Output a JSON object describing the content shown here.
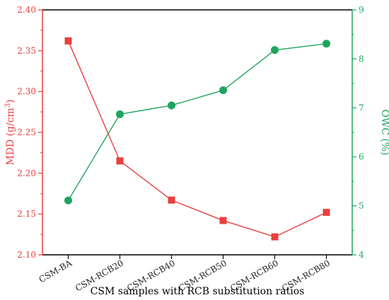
{
  "chart_data": {
    "type": "line",
    "categories": [
      "CSM-BA",
      "CSM-RCB20",
      "CSM-RCB40",
      "CSM-RCB50",
      "CSM-RCB60",
      "CSM-RCB80"
    ],
    "xlabel": "CSM samples with RCB substitution ratios",
    "ylabel_left": "MDD (g/cm³)",
    "ylabel_right": "OWC (%)",
    "y_left": {
      "min": 2.1,
      "max": 2.4,
      "ticks": [
        "2.10",
        "2.15",
        "2.20",
        "2.25",
        "2.30",
        "2.35",
        "2.40"
      ]
    },
    "y_right": {
      "min": 4,
      "max": 9,
      "ticks": [
        "4",
        "5",
        "6",
        "7",
        "8",
        "9"
      ]
    },
    "series": [
      {
        "name": "MDD",
        "axis": "left",
        "marker": "square",
        "color": "#e8403f",
        "values": [
          2.362,
          2.215,
          2.167,
          2.142,
          2.122,
          2.152
        ]
      },
      {
        "name": "OWC",
        "axis": "right",
        "marker": "circle",
        "color": "#1ea55f",
        "values": [
          5.11,
          6.87,
          7.05,
          7.36,
          8.18,
          8.31
        ]
      }
    ],
    "grid": false,
    "legend": "none"
  },
  "colors": {
    "left_axis": "#e8403f",
    "right_axis": "#1ea55f",
    "frame": "#000000"
  }
}
